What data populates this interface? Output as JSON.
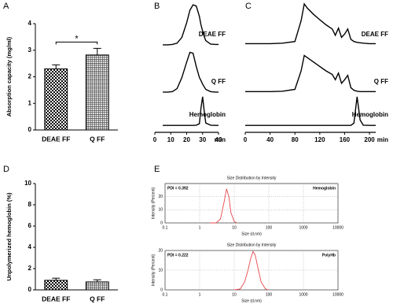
{
  "chart_data": [
    {
      "type": "bar",
      "panel": "A",
      "ylabel": "Absorption capacity (mg/ml)",
      "categories": [
        "DEAE FF",
        "Q FF"
      ],
      "values": [
        2.3,
        2.82
      ],
      "errors": [
        0.15,
        0.25
      ],
      "ylim": [
        0,
        4
      ],
      "yticks": [
        0,
        1,
        2,
        3,
        4
      ],
      "annotation": "*",
      "patterns": [
        "checker",
        "grid"
      ]
    },
    {
      "type": "chromatogram",
      "panel": "B",
      "xlabel": "min",
      "xlim": [
        0,
        40
      ],
      "xticks": [
        0,
        10,
        20,
        30,
        40
      ],
      "color": "#000000",
      "x": [
        5,
        8,
        11,
        14,
        17,
        20,
        22,
        24,
        26,
        28,
        29,
        30,
        31,
        32,
        35,
        38,
        40
      ],
      "series": [
        {
          "name": "DEAE FF",
          "values": [
            0.02,
            0.02,
            0.03,
            0.06,
            0.2,
            0.55,
            0.85,
            0.98,
            0.95,
            0.7,
            0.5,
            0.35,
            0.22,
            0.12,
            0.04,
            0.03,
            0.03
          ]
        },
        {
          "name": "Q FF",
          "values": [
            0.02,
            0.02,
            0.03,
            0.1,
            0.35,
            0.7,
            0.92,
            0.9,
            0.6,
            0.35,
            0.28,
            0.2,
            0.14,
            0.08,
            0.03,
            0.02,
            0.02
          ]
        },
        {
          "name": "Hemoglobin",
          "values": [
            0.02,
            0.02,
            0.02,
            0.02,
            0.02,
            0.02,
            0.02,
            0.02,
            0.03,
            0.08,
            0.6,
            0.98,
            0.5,
            0.1,
            0.03,
            0.02,
            0.02
          ]
        }
      ]
    },
    {
      "type": "chromatogram",
      "panel": "C",
      "xlabel": "min",
      "xlim": [
        0,
        210
      ],
      "xticks": [
        0,
        40,
        80,
        120,
        160,
        200
      ],
      "color": "#000000",
      "x": [
        0,
        20,
        40,
        60,
        80,
        90,
        95,
        100,
        110,
        120,
        130,
        140,
        145,
        150,
        155,
        160,
        165,
        170,
        175,
        180,
        185,
        190,
        200,
        210
      ],
      "series": [
        {
          "name": "DEAE FF",
          "values": [
            0.05,
            0.05,
            0.05,
            0.06,
            0.1,
            0.6,
            1.0,
            0.9,
            0.75,
            0.62,
            0.5,
            0.4,
            0.25,
            0.42,
            0.2,
            0.28,
            0.4,
            0.15,
            0.1,
            0.08,
            0.07,
            0.06,
            0.05,
            0.05
          ]
        },
        {
          "name": "Q FF",
          "values": [
            0.03,
            0.03,
            0.03,
            0.04,
            0.08,
            0.5,
            0.85,
            0.8,
            0.7,
            0.6,
            0.5,
            0.42,
            0.3,
            0.45,
            0.22,
            0.3,
            0.4,
            0.12,
            0.06,
            0.04,
            0.03,
            0.03,
            0.03,
            0.03
          ]
        },
        {
          "name": "Hemoglobin",
          "values": [
            0.02,
            0.02,
            0.02,
            0.02,
            0.02,
            0.02,
            0.02,
            0.02,
            0.02,
            0.02,
            0.02,
            0.02,
            0.02,
            0.02,
            0.02,
            0.02,
            0.02,
            0.02,
            0.1,
            0.98,
            0.2,
            0.03,
            0.02,
            0.02
          ]
        }
      ]
    },
    {
      "type": "bar",
      "panel": "D",
      "ylabel": "Unpolymerized hemoglobin (%)",
      "categories": [
        "DEAE FF",
        "Q FF"
      ],
      "values": [
        0.9,
        0.75
      ],
      "errors": [
        0.2,
        0.2
      ],
      "ylim": [
        0,
        10
      ],
      "yticks": [
        0,
        2,
        4,
        6,
        8,
        10
      ],
      "patterns": [
        "checker",
        "grid"
      ]
    },
    {
      "type": "line",
      "panel": "E",
      "title": "Size Distribution by Intensity",
      "xlabel": "Size (d.nm)",
      "ylabel": "Intensity (Percent)",
      "log_x": true,
      "grid": true,
      "xlim": [
        0.1,
        10000
      ],
      "xticks": [
        0.1,
        1,
        10,
        100,
        1000,
        10000
      ],
      "ylim": [
        0,
        30
      ],
      "yticks": [
        0,
        10,
        20
      ],
      "annotation": "PDI = 0.392",
      "series": [
        {
          "name": "Hemoglobin",
          "color": "#e8474b",
          "x": [
            2,
            3,
            4,
            5,
            6,
            7,
            8,
            10,
            12
          ],
          "values": [
            0,
            0,
            3,
            15,
            26,
            20,
            8,
            1,
            0
          ]
        }
      ]
    },
    {
      "type": "line",
      "title": "Size Distribution by Intensity",
      "xlabel": "Size (d.nm)",
      "ylabel": "Intensity (Percent)",
      "log_x": true,
      "grid": true,
      "xlim": [
        0.1,
        10000
      ],
      "xticks": [
        0.1,
        1,
        10,
        100,
        1000,
        10000
      ],
      "ylim": [
        0,
        20
      ],
      "yticks": [
        0,
        10,
        20
      ],
      "annotation": "PDI = 0.222",
      "series": [
        {
          "name": "PolyHb",
          "color": "#e8474b",
          "x": [
            10,
            15,
            20,
            25,
            30,
            35,
            40,
            50,
            60,
            80,
            100
          ],
          "values": [
            0,
            0.5,
            4,
            10,
            16,
            19.5,
            18,
            10,
            4,
            0.5,
            0
          ]
        }
      ]
    }
  ]
}
